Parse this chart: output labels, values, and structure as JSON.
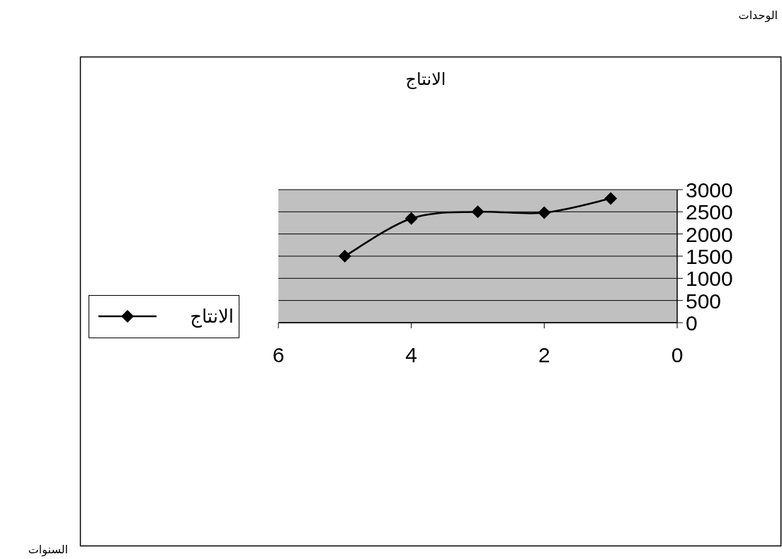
{
  "chart_data": {
    "type": "line",
    "title": "الانتاج",
    "annotations": [
      "الوحدات",
      "السنوات"
    ],
    "x": [
      5,
      4,
      3,
      2,
      1
    ],
    "series": [
      {
        "name": "الانتاج",
        "color": "#000000",
        "values": [
          1500,
          2350,
          2500,
          2480,
          2800
        ]
      }
    ],
    "xlim": [
      6,
      0
    ],
    "ylim": [
      0,
      3000
    ],
    "xticks": [
      0,
      2,
      4,
      6
    ],
    "yticks": [
      0,
      500,
      1000,
      1500,
      2000,
      2500,
      3000
    ],
    "grid": "y",
    "legend": "left",
    "marker": "diamond",
    "line_style": "solid"
  }
}
